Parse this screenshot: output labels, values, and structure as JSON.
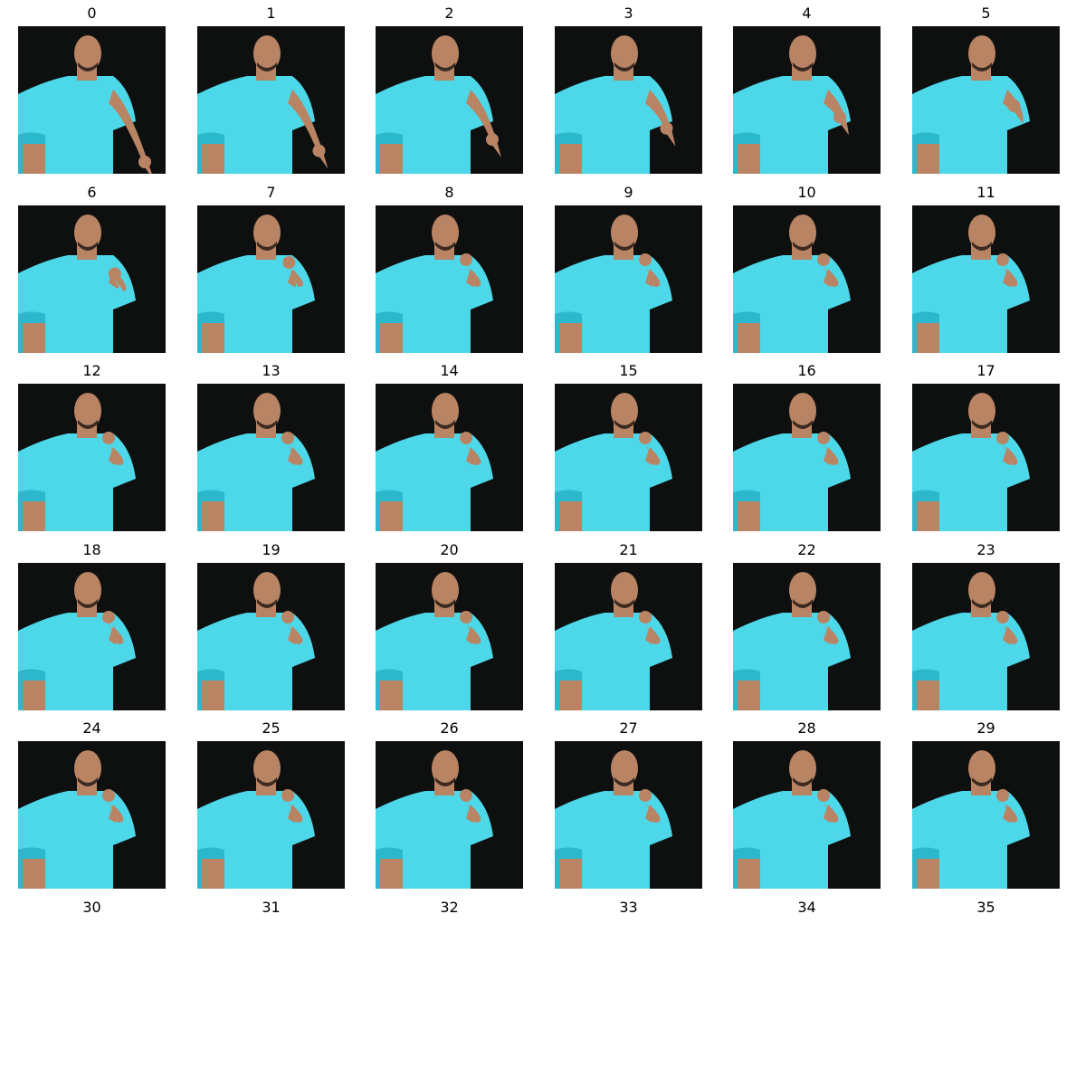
{
  "grid": {
    "labels": [
      "0",
      "1",
      "2",
      "3",
      "4",
      "5",
      "6",
      "7",
      "8",
      "9",
      "10",
      "11",
      "12",
      "13",
      "14",
      "15",
      "16",
      "17",
      "18",
      "19",
      "20",
      "21",
      "22",
      "23",
      "24",
      "25",
      "26",
      "27",
      "28",
      "29",
      "30",
      "31",
      "32",
      "33",
      "34",
      "35"
    ],
    "frame_count": 30
  },
  "frame_content": {
    "description_icon": "person-frame",
    "colors": {
      "background": "#0e1010",
      "shirt": "#4dd8ea",
      "shirt_shadow": "#2bb8cc",
      "skin": "#b98463",
      "hair": "#1a1412"
    }
  }
}
